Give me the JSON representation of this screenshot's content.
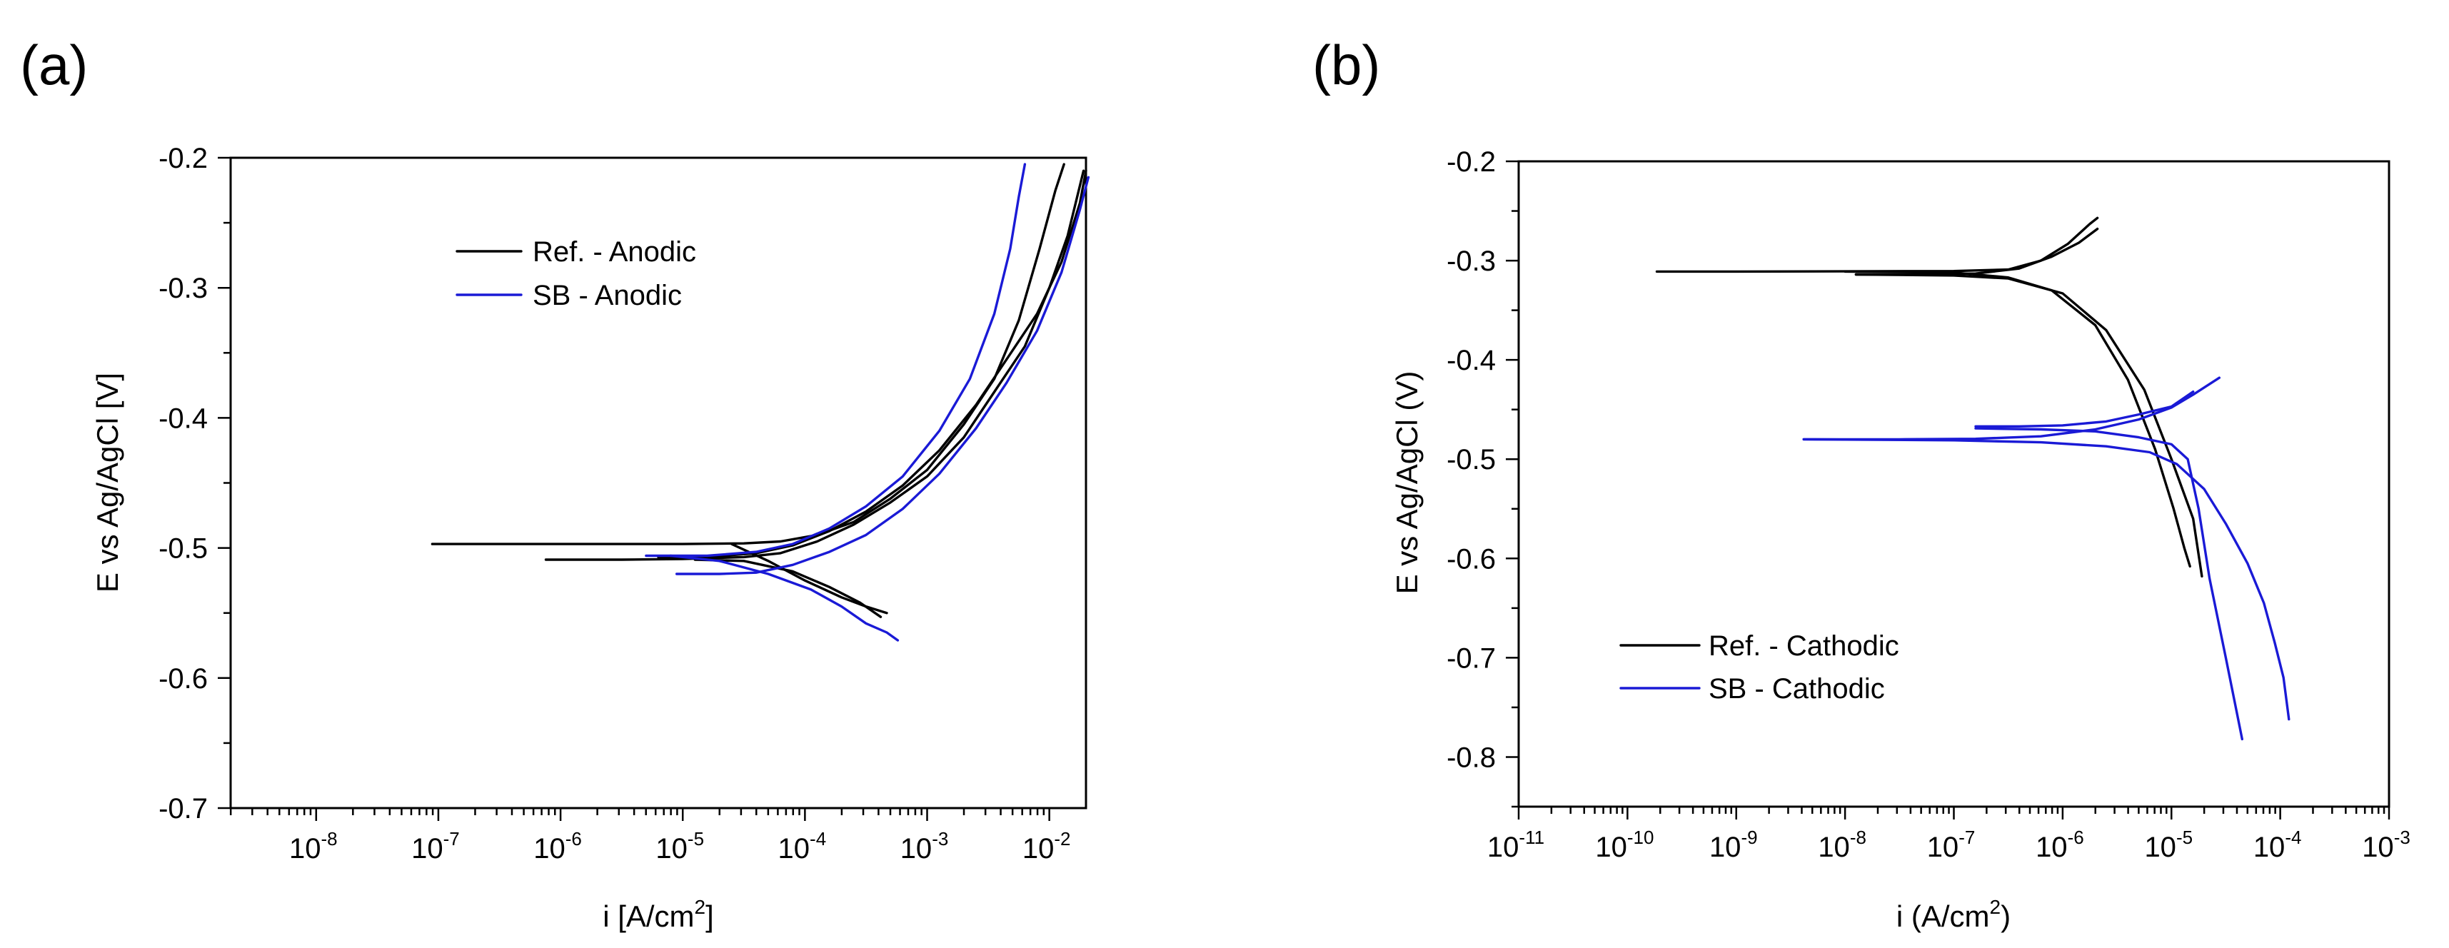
{
  "chart_data": [
    {
      "panel_label": "(a)",
      "type": "line",
      "xscale": "log",
      "xlim_exp": [
        -8.7,
        -1.7
      ],
      "ylim": [
        -0.7,
        -0.2
      ],
      "xticks_exp": [
        -8,
        -7,
        -6,
        -5,
        -4,
        -3,
        -2
      ],
      "tick_base": "10",
      "yticks": [
        -0.2,
        -0.3,
        -0.4,
        -0.5,
        -0.6,
        -0.7
      ],
      "ytick_labels": [
        "-0.2",
        "-0.3",
        "-0.4",
        "-0.5",
        "-0.6",
        "-0.7"
      ],
      "xlabel": "i [A/cm",
      "xlabel_sup": "2",
      "xlabel_end": "]",
      "ylabel": "E vs Ag/AgCl [V]",
      "legend_position": "upper-left",
      "legend": [
        {
          "label": "Ref. - Anodic",
          "color": "#000000"
        },
        {
          "label": "SB - Anodic",
          "color": "#1a1ad6"
        }
      ],
      "series": [
        {
          "name": "Ref. - Anodic (1)",
          "color": "#000000",
          "points": [
            [
              -7.05,
              -0.497
            ],
            [
              -6,
              -0.497
            ],
            [
              -5,
              -0.497
            ],
            [
              -4.5,
              -0.4965
            ],
            [
              -4.2,
              -0.495
            ],
            [
              -3.9,
              -0.49
            ],
            [
              -3.6,
              -0.48
            ],
            [
              -3.3,
              -0.462
            ],
            [
              -3,
              -0.44
            ],
            [
              -2.7,
              -0.405
            ],
            [
              -2.45,
              -0.37
            ],
            [
              -2.25,
              -0.325
            ],
            [
              -2.08,
              -0.27
            ],
            [
              -1.95,
              -0.225
            ],
            [
              -1.88,
              -0.205
            ]
          ]
        },
        {
          "name": "Ref. - Anodic (1) cathodic branch",
          "color": "#000000",
          "points": [
            [
              -4.6,
              -0.497
            ],
            [
              -4.3,
              -0.51
            ],
            [
              -4,
              -0.525
            ],
            [
              -3.7,
              -0.538
            ],
            [
              -3.5,
              -0.545
            ],
            [
              -3.33,
              -0.55
            ]
          ]
        },
        {
          "name": "Ref. - Anodic (2)",
          "color": "#000000",
          "points": [
            [
              -6.12,
              -0.509
            ],
            [
              -5.5,
              -0.509
            ],
            [
              -5,
              -0.5085
            ],
            [
              -4.5,
              -0.507
            ],
            [
              -4.2,
              -0.504
            ],
            [
              -3.9,
              -0.495
            ],
            [
              -3.6,
              -0.482
            ],
            [
              -3.3,
              -0.465
            ],
            [
              -3,
              -0.445
            ],
            [
              -2.7,
              -0.415
            ],
            [
              -2.45,
              -0.38
            ],
            [
              -2.2,
              -0.345
            ],
            [
              -2.0,
              -0.3
            ],
            [
              -1.85,
              -0.26
            ],
            [
              -1.72,
              -0.21
            ]
          ]
        },
        {
          "name": "Ref. - Anodic (2) cathodic branch",
          "color": "#000000",
          "points": [
            [
              -4.9,
              -0.509
            ],
            [
              -4.5,
              -0.51
            ],
            [
              -4.1,
              -0.518
            ],
            [
              -3.8,
              -0.53
            ],
            [
              -3.55,
              -0.542
            ],
            [
              -3.38,
              -0.553
            ]
          ]
        },
        {
          "name": "Ref. - Anodic (3)",
          "color": "#000000",
          "points": [
            [
              -5.2,
              -0.507
            ],
            [
              -4.8,
              -0.507
            ],
            [
              -4.4,
              -0.504
            ],
            [
              -4.1,
              -0.498
            ],
            [
              -3.8,
              -0.487
            ],
            [
              -3.5,
              -0.472
            ],
            [
              -3.2,
              -0.452
            ],
            [
              -2.9,
              -0.425
            ],
            [
              -2.6,
              -0.39
            ],
            [
              -2.35,
              -0.355
            ],
            [
              -2.1,
              -0.32
            ],
            [
              -1.9,
              -0.28
            ],
            [
              -1.75,
              -0.235
            ],
            [
              -1.7,
              -0.21
            ]
          ]
        },
        {
          "name": "SB - Anodic (1)",
          "color": "#1a1ad6",
          "points": [
            [
              -5.3,
              -0.506
            ],
            [
              -4.8,
              -0.506
            ],
            [
              -4.4,
              -0.503
            ],
            [
              -4.1,
              -0.497
            ],
            [
              -3.8,
              -0.485
            ],
            [
              -3.5,
              -0.468
            ],
            [
              -3.2,
              -0.445
            ],
            [
              -2.9,
              -0.41
            ],
            [
              -2.65,
              -0.37
            ],
            [
              -2.45,
              -0.32
            ],
            [
              -2.32,
              -0.27
            ],
            [
              -2.25,
              -0.23
            ],
            [
              -2.2,
              -0.205
            ]
          ]
        },
        {
          "name": "SB - Anodic (1) cathodic branch",
          "color": "#1a1ad6",
          "points": [
            [
              -5.1,
              -0.506
            ],
            [
              -4.7,
              -0.51
            ],
            [
              -4.3,
              -0.52
            ],
            [
              -3.95,
              -0.532
            ],
            [
              -3.7,
              -0.545
            ],
            [
              -3.5,
              -0.558
            ],
            [
              -3.33,
              -0.565
            ],
            [
              -3.24,
              -0.571
            ]
          ]
        },
        {
          "name": "SB - Anodic (2)",
          "color": "#1a1ad6",
          "points": [
            [
              -5.05,
              -0.52
            ],
            [
              -4.7,
              -0.52
            ],
            [
              -4.4,
              -0.519
            ],
            [
              -4.1,
              -0.513
            ],
            [
              -3.8,
              -0.503
            ],
            [
              -3.5,
              -0.49
            ],
            [
              -3.2,
              -0.47
            ],
            [
              -2.9,
              -0.443
            ],
            [
              -2.6,
              -0.408
            ],
            [
              -2.35,
              -0.373
            ],
            [
              -2.1,
              -0.333
            ],
            [
              -1.9,
              -0.288
            ],
            [
              -1.75,
              -0.24
            ],
            [
              -1.68,
              -0.215
            ]
          ]
        }
      ]
    },
    {
      "panel_label": "(b)",
      "type": "line",
      "xscale": "log",
      "xlim_exp": [
        -11,
        -3
      ],
      "ylim": [
        -0.85,
        -0.2
      ],
      "xticks_exp": [
        -11,
        -10,
        -9,
        -8,
        -7,
        -6,
        -5,
        -4,
        -3
      ],
      "tick_base": "10",
      "yticks": [
        -0.2,
        -0.3,
        -0.4,
        -0.5,
        -0.6,
        -0.7,
        -0.8
      ],
      "ytick_labels": [
        "-0.2",
        "-0.3",
        "-0.4",
        "-0.5",
        "-0.6",
        "-0.7",
        "-0.8"
      ],
      "xlabel": "i (A/cm",
      "xlabel_sup": "2",
      "xlabel_end": ")",
      "ylabel": "E vs Ag/AgCl (V)",
      "legend_position": "lower-left",
      "legend": [
        {
          "label": "Ref. - Cathodic",
          "color": "#000000"
        },
        {
          "label": "SB - Cathodic",
          "color": "#1a1ad6"
        }
      ],
      "series": [
        {
          "name": "Ref. - Cathodic (1) anodic",
          "color": "#000000",
          "points": [
            [
              -9.73,
              -0.311
            ],
            [
              -9,
              -0.311
            ],
            [
              -8,
              -0.3108
            ],
            [
              -7,
              -0.3105
            ],
            [
              -6.5,
              -0.309
            ],
            [
              -6.2,
              -0.3
            ],
            [
              -5.95,
              -0.283
            ],
            [
              -5.75,
              -0.263
            ],
            [
              -5.68,
              -0.257
            ]
          ]
        },
        {
          "name": "Ref. - Cathodic (1) cathodic",
          "color": "#000000",
          "points": [
            [
              -8,
              -0.311
            ],
            [
              -7,
              -0.312
            ],
            [
              -6.5,
              -0.317
            ],
            [
              -6.1,
              -0.33
            ],
            [
              -5.7,
              -0.365
            ],
            [
              -5.4,
              -0.42
            ],
            [
              -5.15,
              -0.49
            ],
            [
              -4.98,
              -0.55
            ],
            [
              -4.88,
              -0.59
            ],
            [
              -4.83,
              -0.608
            ]
          ]
        },
        {
          "name": "Ref. - Cathodic (2) anodic",
          "color": "#000000",
          "points": [
            [
              -7.9,
              -0.314
            ],
            [
              -7.3,
              -0.314
            ],
            [
              -6.8,
              -0.313
            ],
            [
              -6.4,
              -0.308
            ],
            [
              -6.1,
              -0.296
            ],
            [
              -5.85,
              -0.282
            ],
            [
              -5.68,
              -0.268
            ]
          ]
        },
        {
          "name": "Ref. - Cathodic (2) cathodic",
          "color": "#000000",
          "points": [
            [
              -7.9,
              -0.314
            ],
            [
              -7,
              -0.315
            ],
            [
              -6.5,
              -0.318
            ],
            [
              -6,
              -0.333
            ],
            [
              -5.6,
              -0.37
            ],
            [
              -5.25,
              -0.43
            ],
            [
              -5.0,
              -0.5
            ],
            [
              -4.8,
              -0.56
            ],
            [
              -4.72,
              -0.618
            ]
          ]
        },
        {
          "name": "SB - Cathodic (1) anodic",
          "color": "#1a1ad6",
          "points": [
            [
              -6.8,
              -0.467
            ],
            [
              -6.4,
              -0.467
            ],
            [
              -6,
              -0.466
            ],
            [
              -5.6,
              -0.462
            ],
            [
              -5.3,
              -0.455
            ],
            [
              -5.0,
              -0.447
            ],
            [
              -4.8,
              -0.432
            ]
          ]
        },
        {
          "name": "SB - Cathodic (1) cathodic",
          "color": "#1a1ad6",
          "points": [
            [
              -6.8,
              -0.469
            ],
            [
              -6.2,
              -0.47
            ],
            [
              -5.7,
              -0.472
            ],
            [
              -5.3,
              -0.478
            ],
            [
              -5.0,
              -0.485
            ],
            [
              -4.85,
              -0.5
            ],
            [
              -4.75,
              -0.55
            ],
            [
              -4.65,
              -0.62
            ],
            [
              -4.5,
              -0.7
            ],
            [
              -4.35,
              -0.782
            ]
          ]
        },
        {
          "name": "SB - Cathodic (2) anodic",
          "color": "#1a1ad6",
          "points": [
            [
              -8.38,
              -0.48
            ],
            [
              -7.5,
              -0.48
            ],
            [
              -6.8,
              -0.4795
            ],
            [
              -6.2,
              -0.477
            ],
            [
              -5.7,
              -0.47
            ],
            [
              -5.3,
              -0.46
            ],
            [
              -5.0,
              -0.448
            ],
            [
              -4.8,
              -0.435
            ],
            [
              -4.56,
              -0.418
            ]
          ]
        },
        {
          "name": "SB - Cathodic (2) cathodic",
          "color": "#1a1ad6",
          "points": [
            [
              -8.38,
              -0.48
            ],
            [
              -7,
              -0.481
            ],
            [
              -6.2,
              -0.483
            ],
            [
              -5.6,
              -0.487
            ],
            [
              -5.2,
              -0.493
            ],
            [
              -4.95,
              -0.505
            ],
            [
              -4.7,
              -0.53
            ],
            [
              -4.5,
              -0.565
            ],
            [
              -4.3,
              -0.605
            ],
            [
              -4.15,
              -0.645
            ],
            [
              -4.05,
              -0.685
            ],
            [
              -3.97,
              -0.72
            ],
            [
              -3.92,
              -0.762
            ]
          ]
        }
      ]
    }
  ]
}
